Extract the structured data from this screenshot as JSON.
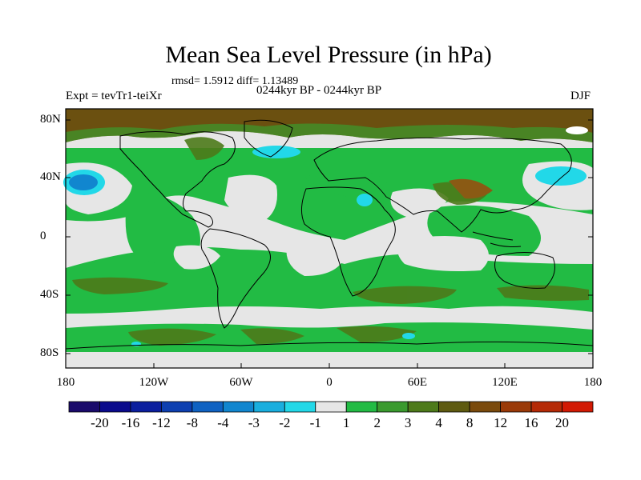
{
  "title": "Mean Sea Level Pressure (in hPa)",
  "stats": "rmsd= 1.5912 diff= 1.13489",
  "period": "0244kyr BP - 0244kyr BP",
  "experiment": "Expt = tevTr1-teiXr",
  "season": "DJF",
  "lat_labels": [
    "80N",
    "40N",
    "0",
    "40S",
    "80S"
  ],
  "lon_labels": [
    "180",
    "120W",
    "60W",
    "0",
    "60E",
    "120E",
    "180"
  ],
  "colorbar": {
    "labels": [
      "-20",
      "-16",
      "-12",
      "-8",
      "-4",
      "-3",
      "-2",
      "-1",
      "1",
      "2",
      "3",
      "4",
      "8",
      "12",
      "16",
      "20"
    ],
    "colors": [
      "#1a0a6b",
      "#0a0a8c",
      "#0b1e9e",
      "#0d3fb0",
      "#0f62c2",
      "#1186cf",
      "#19aede",
      "#22d8e8",
      "#e6e6e6",
      "#22bb44",
      "#3a9a2e",
      "#4d7a1a",
      "#5e5a10",
      "#7a4a0c",
      "#9a3a08",
      "#b52a06",
      "#d21a04"
    ]
  },
  "colors": {
    "neutral": "#e6e6e6",
    "green": "#22bb44",
    "dark_green": "#3a9a2e",
    "olive": "#4d7a1a",
    "brown": "#6b5010",
    "cyan": "#22d8e8",
    "blue": "#1186cf"
  }
}
